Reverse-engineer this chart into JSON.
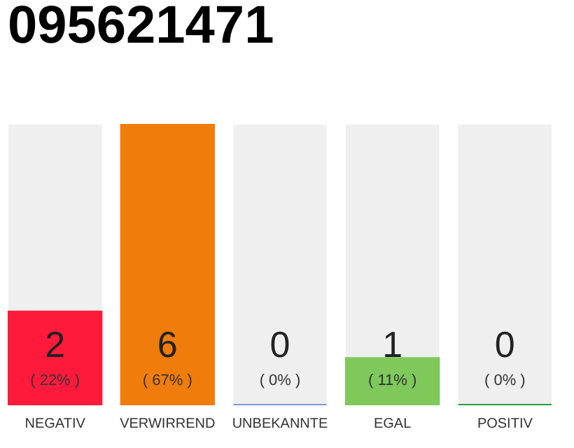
{
  "chart_data": {
    "type": "bar",
    "title": "095621471",
    "categories": [
      "NEGATIV",
      "VERWIRREND",
      "UNBEKANNTE",
      "EGAL",
      "POSITIV"
    ],
    "values": [
      2,
      6,
      0,
      1,
      0
    ],
    "colors": [
      "#ff1a3c",
      "#f07c0c",
      "#7799e0",
      "#7ec85c",
      "#23a33b"
    ],
    "value_labels": [
      "2",
      "6",
      "0",
      "1",
      "0"
    ],
    "ylim": [
      0,
      6
    ],
    "tick_labels": "x",
    "annotations": [
      "( 22% )",
      "( 67% )",
      "( 0% )",
      "( 11% )",
      "( 0% )"
    ]
  }
}
